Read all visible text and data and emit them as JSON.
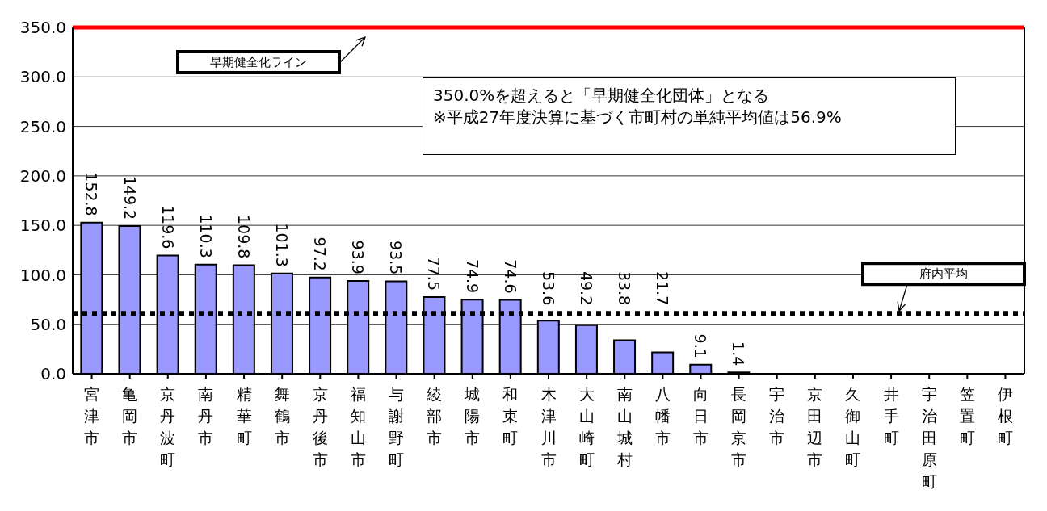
{
  "chart_data": {
    "type": "bar",
    "categories": [
      "宮津市",
      "亀岡市",
      "京丹波町",
      "南丹市",
      "精華町",
      "舞鶴市",
      "京丹後市",
      "福知山市",
      "与謝野町",
      "綾部市",
      "城陽市",
      "和束町",
      "木津川市",
      "大山崎町",
      "南山城村",
      "八幡市",
      "向日市",
      "長岡京市",
      "宇治市",
      "京田辺市",
      "久御山町",
      "井手町",
      "宇治田原町",
      "笠置町",
      "伊根町"
    ],
    "values": [
      152.8,
      149.2,
      119.6,
      110.3,
      109.8,
      101.3,
      97.2,
      93.9,
      93.5,
      77.5,
      74.9,
      74.6,
      53.6,
      49.2,
      33.8,
      21.7,
      9.1,
      1.4,
      0,
      0,
      0,
      0,
      0,
      0,
      0
    ],
    "value_labels": [
      "152.8",
      "149.2",
      "119.6",
      "110.3",
      "109.8",
      "101.3",
      "97.2",
      "93.9",
      "93.5",
      "77.5",
      "74.9",
      "74.6",
      "53.6",
      "49.2",
      "33.8",
      "21.7",
      "9.1",
      "1.4",
      null,
      null,
      null,
      null,
      null,
      null,
      null
    ],
    "color": "#9999ff",
    "ylim": [
      0,
      350
    ],
    "yticks": [
      {
        "value": 0,
        "label": "0.0"
      },
      {
        "value": 50,
        "label": "50.0"
      },
      {
        "value": 100,
        "label": "100.0"
      },
      {
        "value": 150,
        "label": "150.0"
      },
      {
        "value": 200,
        "label": "200.0"
      },
      {
        "value": 250,
        "label": "250.0"
      },
      {
        "value": 300,
        "label": "300.0"
      },
      {
        "value": 350,
        "label": "350.0"
      }
    ],
    "grid": "y",
    "legend": false,
    "ref_lines": [
      {
        "axis": "y",
        "value": 350,
        "label": "早期健全化ライン",
        "color": "#ff0000",
        "line_style": "solid"
      },
      {
        "axis": "y",
        "value": 61,
        "label": "府内平均",
        "color": "#000000",
        "line_style": "dotted"
      }
    ],
    "annotations": [
      "350.0%を超えると「早期健全化団体」となる",
      "※平成27年度決算に基づく市町村の単純平均値は56.9%"
    ]
  }
}
